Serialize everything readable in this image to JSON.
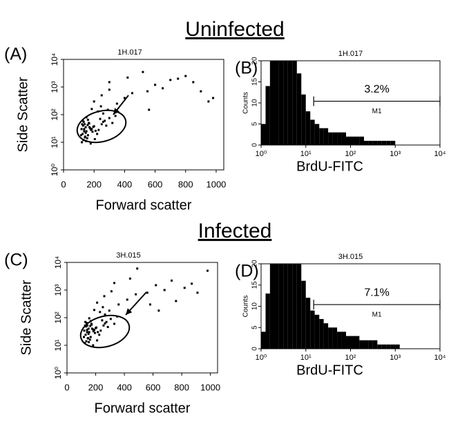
{
  "headings": [
    "Uninfected",
    "Infected"
  ],
  "chart_data": [
    {
      "type": "scatter",
      "panel": "(A)",
      "subtitle": "1H.017",
      "xlabel": "Forward scatter",
      "ylabel": "Side Scatter",
      "color": "#000000",
      "xlim": [
        0,
        1050
      ],
      "xticks": [
        0,
        200,
        400,
        600,
        800,
        1000
      ],
      "ylim": [
        1,
        10000
      ],
      "log_y": true,
      "yticks": [
        {
          "value": 1,
          "label": "10⁰"
        },
        {
          "value": 10,
          "label": "10¹"
        },
        {
          "value": 100,
          "label": "10²"
        },
        {
          "value": 1000,
          "label": "10³"
        },
        {
          "value": 10000,
          "label": "10⁴"
        }
      ],
      "x": [
        120,
        130,
        140,
        125,
        150,
        135,
        160,
        145,
        170,
        128,
        155,
        180,
        138,
        165,
        190,
        142,
        175,
        200,
        132,
        148,
        210,
        158,
        185,
        220,
        126,
        168,
        195,
        230,
        240,
        150,
        178,
        205,
        250,
        260,
        135,
        145,
        160,
        115,
        118,
        122,
        270,
        280,
        300,
        320,
        340,
        260,
        290,
        225,
        245,
        185,
        200,
        250,
        300,
        350,
        400,
        450,
        520,
        550,
        600,
        650,
        700,
        750,
        800,
        850,
        900,
        950,
        980,
        300,
        420,
        560
      ],
      "values": [
        10,
        12,
        15,
        20,
        25,
        30,
        18,
        22,
        35,
        40,
        14,
        28,
        45,
        50,
        24,
        16,
        32,
        38,
        55,
        11,
        26,
        42,
        30,
        20,
        60,
        48,
        36,
        28,
        70,
        80,
        9,
        13,
        45,
        55,
        25,
        35,
        65,
        18,
        30,
        45,
        60,
        40,
        75,
        50,
        90,
        110,
        150,
        130,
        200,
        160,
        300,
        500,
        800,
        250,
        400,
        600,
        3500,
        700,
        1200,
        900,
        1800,
        2000,
        2500,
        1500,
        700,
        300,
        400,
        1500,
        2200,
        150
      ]
    },
    {
      "type": "histogram",
      "panel": "(B)",
      "subtitle": "1H.017",
      "xlabel": "BrdU-FITC",
      "ylabel": "Counts",
      "color": "#000000",
      "xlim": [
        1,
        10000
      ],
      "log_x": true,
      "xticks": [
        {
          "value": 1,
          "label": "10⁰"
        },
        {
          "value": 10,
          "label": "10¹"
        },
        {
          "value": 100,
          "label": "10²"
        },
        {
          "value": 1000,
          "label": "10³"
        },
        {
          "value": 10000,
          "label": "10⁴"
        }
      ],
      "ylim": [
        0,
        20
      ],
      "yticks": [
        0,
        5,
        10,
        15,
        20
      ],
      "bins": [
        1,
        1.26,
        1.58,
        2,
        2.51,
        3.16,
        3.98,
        5.01,
        6.31,
        7.94,
        10,
        12.6,
        15.8,
        20,
        25.1,
        31.6,
        39.8,
        50.1,
        63.1,
        79.4,
        100,
        126,
        158,
        200,
        251,
        316,
        398,
        501,
        631,
        794,
        1000,
        1259,
        1585,
        1995,
        2512,
        3162,
        3981,
        5012,
        6310,
        7943,
        10000
      ],
      "values": [
        5,
        14,
        20,
        20,
        20,
        20,
        20,
        20,
        17,
        12,
        8,
        6,
        5,
        4,
        4,
        3,
        3,
        3,
        3,
        2,
        2,
        2,
        2,
        1,
        1,
        1,
        1,
        1,
        1,
        1,
        0,
        0,
        0,
        0,
        0,
        0,
        0,
        0,
        0,
        0
      ],
      "gate": {
        "name": "M1",
        "start": 15,
        "end": 10000,
        "value": 3.2,
        "value_label": "3.2%"
      }
    },
    {
      "type": "scatter",
      "panel": "(C)",
      "subtitle": "3H.015",
      "xlabel": "Forward scatter",
      "ylabel": "Side Scatter",
      "color": "#000000",
      "xlim": [
        0,
        1050
      ],
      "xticks": [
        0,
        200,
        400,
        600,
        800,
        1000
      ],
      "ylim": [
        1,
        10000
      ],
      "log_y": true,
      "yticks": [
        {
          "value": 1,
          "label": "10⁰"
        },
        {
          "value": 10,
          "label": "10¹"
        },
        {
          "value": 100,
          "label": "10²"
        },
        {
          "value": 1000,
          "label": "10³"
        },
        {
          "value": 10000,
          "label": "10⁴"
        }
      ],
      "x": [
        125,
        135,
        145,
        130,
        155,
        140,
        165,
        150,
        175,
        132,
        160,
        185,
        142,
        170,
        195,
        148,
        180,
        205,
        136,
        152,
        215,
        162,
        190,
        225,
        128,
        172,
        200,
        235,
        245,
        155,
        182,
        210,
        255,
        265,
        140,
        150,
        165,
        118,
        120,
        126,
        275,
        285,
        305,
        330,
        350,
        265,
        295,
        230,
        250,
        190,
        210,
        260,
        310,
        360,
        420,
        480,
        490,
        560,
        620,
        680,
        730,
        760,
        820,
        870,
        910,
        980,
        330,
        440,
        580,
        640
      ],
      "values": [
        12,
        14,
        18,
        24,
        30,
        36,
        20,
        26,
        40,
        48,
        16,
        32,
        52,
        60,
        28,
        18,
        38,
        44,
        65,
        13,
        30,
        50,
        36,
        24,
        70,
        56,
        42,
        34,
        80,
        95,
        10,
        15,
        52,
        62,
        30,
        40,
        75,
        20,
        34,
        52,
        70,
        46,
        90,
        60,
        110,
        130,
        180,
        160,
        240,
        190,
        350,
        600,
        900,
        300,
        450,
        700,
        6000,
        800,
        1500,
        1000,
        2200,
        400,
        1200,
        1700,
        800,
        5000,
        1800,
        2600,
        300,
        180
      ]
    },
    {
      "type": "histogram",
      "panel": "(D)",
      "subtitle": "3H.015",
      "xlabel": "BrdU-FITC",
      "ylabel": "Counts",
      "color": "#000000",
      "xlim": [
        1,
        10000
      ],
      "log_x": true,
      "xticks": [
        {
          "value": 1,
          "label": "10⁰"
        },
        {
          "value": 10,
          "label": "10¹"
        },
        {
          "value": 100,
          "label": "10²"
        },
        {
          "value": 1000,
          "label": "10³"
        },
        {
          "value": 10000,
          "label": "10⁴"
        }
      ],
      "ylim": [
        0,
        20
      ],
      "yticks": [
        0,
        5,
        10,
        15,
        20
      ],
      "bins": [
        1,
        1.26,
        1.58,
        2,
        2.51,
        3.16,
        3.98,
        5.01,
        6.31,
        7.94,
        10,
        12.6,
        15.8,
        20,
        25.1,
        31.6,
        39.8,
        50.1,
        63.1,
        79.4,
        100,
        126,
        158,
        200,
        251,
        316,
        398,
        501,
        631,
        794,
        1000,
        1259,
        1585,
        1995,
        2512,
        3162,
        3981,
        5012,
        6310,
        7943,
        10000
      ],
      "values": [
        4,
        13,
        20,
        20,
        20,
        20,
        20,
        20,
        20,
        16,
        12,
        9,
        8,
        7,
        6,
        5,
        5,
        4,
        4,
        3,
        3,
        3,
        2,
        2,
        2,
        2,
        1,
        1,
        1,
        1,
        1,
        0,
        0,
        0,
        0,
        0,
        0,
        0,
        0,
        0
      ],
      "gate": {
        "name": "M1",
        "start": 15,
        "end": 10000,
        "value": 7.1,
        "value_label": "7.1%"
      }
    }
  ]
}
